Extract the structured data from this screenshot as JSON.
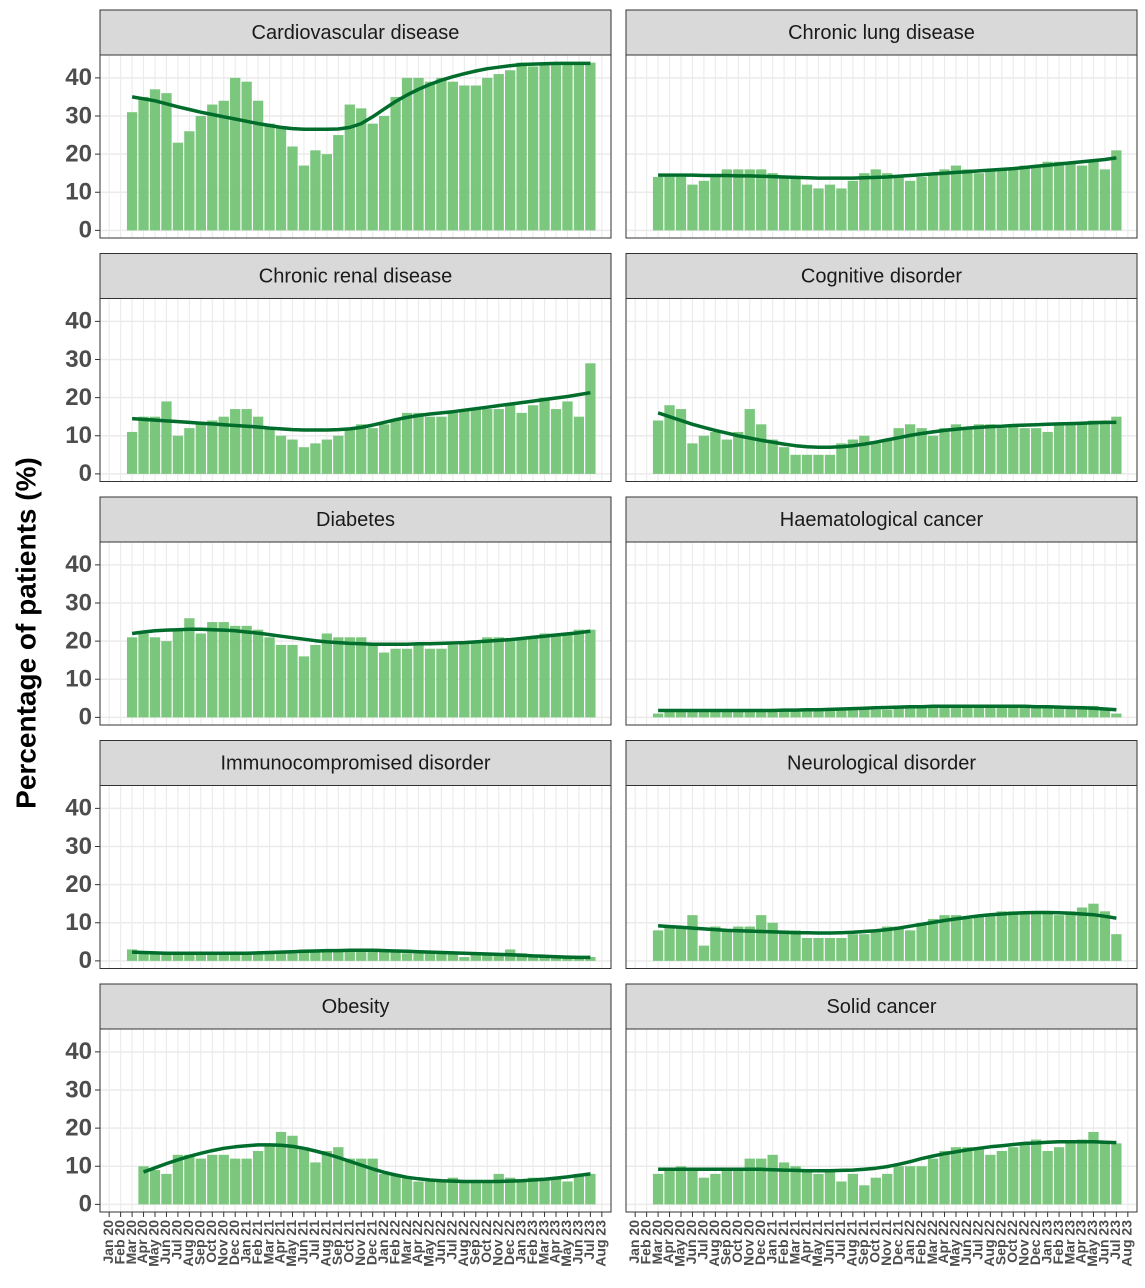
{
  "chart_data": {
    "type": "bar",
    "y_label": "Percentage of patients (%)",
    "categories": [
      "Jan 20",
      "Feb 20",
      "Mar 20",
      "Apr 20",
      "May 20",
      "Jun 20",
      "Jul 20",
      "Aug 20",
      "Sep 20",
      "Oct 20",
      "Nov 20",
      "Dec 20",
      "Jan 21",
      "Feb 21",
      "Mar 21",
      "Apr 21",
      "May 21",
      "Jun 21",
      "Jul 21",
      "Aug 21",
      "Sep 21",
      "Oct 21",
      "Nov 21",
      "Dec 21",
      "Jan 22",
      "Feb 22",
      "Mar 22",
      "Apr 22",
      "May 22",
      "Jun 22",
      "Jul 22",
      "Aug 22",
      "Sep 22",
      "Oct 22",
      "Nov 22",
      "Dec 22",
      "Jan 23",
      "Feb 23",
      "Mar 23",
      "Apr 23",
      "May 23",
      "Jun 23",
      "Jul 23",
      "Aug 23"
    ],
    "ylim": [
      -2,
      46
    ],
    "yticks": [
      0,
      10,
      20,
      30,
      40
    ],
    "grid": true,
    "bar_color": "#74c476",
    "line_color": "#006d2c",
    "panels": [
      {
        "title": "Cardiovascular disease",
        "values": [
          null,
          null,
          31,
          35,
          37,
          36,
          23,
          26,
          30,
          33,
          34,
          40,
          39,
          34,
          28,
          27,
          22,
          17,
          21,
          20,
          25,
          33,
          32,
          28,
          30,
          35,
          40,
          40,
          39,
          40,
          39,
          38,
          38,
          40,
          41,
          42,
          44,
          43,
          44,
          44,
          44,
          44,
          44,
          null
        ],
        "trend": [
          null,
          null,
          35,
          34.5,
          34,
          33.2,
          32.4,
          31.7,
          31,
          30.4,
          29.8,
          29.2,
          28.6,
          28,
          27.5,
          27,
          26.7,
          26.5,
          26.5,
          26.5,
          26.6,
          27,
          28,
          29.8,
          31.8,
          33.8,
          35.5,
          37,
          38.3,
          39.4,
          40.3,
          41.1,
          41.8,
          42.4,
          42.8,
          43.2,
          43.5,
          43.6,
          43.7,
          43.8,
          43.8,
          43.8,
          43.8,
          null
        ]
      },
      {
        "title": "Chronic lung disease",
        "values": [
          null,
          null,
          14,
          14,
          14,
          12,
          13,
          14,
          16,
          16,
          16,
          16,
          15,
          14,
          14,
          12,
          11,
          12,
          11,
          13,
          15,
          16,
          15,
          14,
          13,
          14,
          15,
          16,
          17,
          16,
          15,
          16,
          16,
          16,
          17,
          17,
          18,
          18,
          18,
          17,
          18,
          16,
          21,
          null
        ],
        "trend": [
          null,
          null,
          14.5,
          14.5,
          14.5,
          14.5,
          14.4,
          14.4,
          14.4,
          14.3,
          14.3,
          14.2,
          14.1,
          14,
          13.9,
          13.8,
          13.7,
          13.7,
          13.7,
          13.7,
          13.8,
          13.9,
          14,
          14.2,
          14.4,
          14.6,
          14.8,
          15,
          15.2,
          15.4,
          15.6,
          15.8,
          16,
          16.2,
          16.5,
          16.8,
          17.1,
          17.4,
          17.7,
          18,
          18.3,
          18.6,
          19,
          null
        ]
      },
      {
        "title": "Chronic renal disease",
        "values": [
          null,
          null,
          11,
          15,
          15,
          19,
          10,
          12,
          13,
          14,
          15,
          17,
          17,
          15,
          12,
          10,
          9,
          7,
          8,
          9,
          10,
          12,
          13,
          12,
          13,
          14,
          16,
          16,
          15,
          15,
          16,
          17,
          17,
          17,
          17,
          18,
          16,
          18,
          20,
          17,
          19,
          15,
          29,
          null
        ],
        "trend": [
          null,
          null,
          14.5,
          14.3,
          14.1,
          13.9,
          13.7,
          13.5,
          13.3,
          13.1,
          12.9,
          12.7,
          12.5,
          12.3,
          12,
          11.8,
          11.6,
          11.5,
          11.5,
          11.5,
          11.6,
          11.8,
          12.2,
          12.8,
          13.5,
          14.2,
          14.8,
          15.3,
          15.7,
          16,
          16.3,
          16.7,
          17.1,
          17.5,
          17.9,
          18.3,
          18.7,
          19.1,
          19.5,
          19.9,
          20.3,
          20.8,
          21.3,
          null
        ]
      },
      {
        "title": "Cognitive disorder",
        "values": [
          null,
          null,
          14,
          18,
          17,
          8,
          10,
          11,
          9,
          11,
          17,
          13,
          9,
          7,
          5,
          5,
          5,
          5,
          8,
          9,
          10,
          8,
          9,
          12,
          13,
          12,
          10,
          12,
          13,
          12,
          13,
          13,
          12,
          13,
          12,
          12,
          11,
          13,
          13,
          13,
          14,
          14,
          15,
          null
        ],
        "trend": [
          null,
          null,
          16,
          15,
          14,
          13,
          12.2,
          11.4,
          10.7,
          10,
          9.4,
          8.8,
          8.3,
          7.8,
          7.4,
          7.1,
          7,
          7,
          7.1,
          7.4,
          7.8,
          8.3,
          8.9,
          9.5,
          10.1,
          10.6,
          11,
          11.4,
          11.7,
          12,
          12.2,
          12.4,
          12.5,
          12.7,
          12.8,
          12.9,
          13,
          13.1,
          13.2,
          13.3,
          13.4,
          13.5,
          13.5,
          null
        ]
      },
      {
        "title": "Diabetes",
        "values": [
          null,
          null,
          21,
          22,
          21,
          20,
          23,
          26,
          22,
          25,
          25,
          24,
          24,
          23,
          21,
          19,
          19,
          16,
          19,
          22,
          21,
          21,
          21,
          19,
          17,
          18,
          18,
          19,
          18,
          18,
          19,
          20,
          20,
          21,
          21,
          20,
          21,
          21,
          22,
          22,
          22,
          23,
          23,
          null
        ],
        "trend": [
          null,
          null,
          22,
          22.4,
          22.7,
          22.9,
          23,
          23.1,
          23.1,
          23,
          22.9,
          22.7,
          22.4,
          22.1,
          21.7,
          21.3,
          20.9,
          20.5,
          20.1,
          19.8,
          19.6,
          19.4,
          19.3,
          19.2,
          19.2,
          19.2,
          19.2,
          19.3,
          19.3,
          19.4,
          19.5,
          19.6,
          19.8,
          20,
          20.2,
          20.4,
          20.7,
          21,
          21.3,
          21.6,
          21.9,
          22.2,
          22.6,
          null
        ]
      },
      {
        "title": "Haematological cancer",
        "values": [
          null,
          null,
          1,
          2,
          2,
          2,
          2,
          2,
          2,
          2,
          2,
          2,
          2,
          2,
          2,
          2,
          2,
          2,
          2,
          2,
          2,
          2,
          2,
          3,
          3,
          3,
          3,
          3,
          3,
          3,
          3,
          3,
          3,
          3,
          3,
          3,
          3,
          3,
          3,
          3,
          3,
          2,
          1,
          null
        ],
        "trend": [
          null,
          null,
          1.8,
          1.8,
          1.8,
          1.8,
          1.8,
          1.8,
          1.8,
          1.8,
          1.8,
          1.8,
          1.8,
          1.9,
          1.9,
          2,
          2,
          2.1,
          2.2,
          2.3,
          2.4,
          2.5,
          2.6,
          2.7,
          2.8,
          2.8,
          2.9,
          2.9,
          2.9,
          2.9,
          2.9,
          2.9,
          2.9,
          2.9,
          2.9,
          2.8,
          2.8,
          2.7,
          2.6,
          2.5,
          2.4,
          2.2,
          2,
          null
        ]
      },
      {
        "title": "Immunocompromised disorder",
        "values": [
          null,
          null,
          3,
          2,
          2,
          2,
          2,
          2,
          2,
          2,
          2,
          2,
          2,
          2,
          2,
          2,
          2,
          3,
          3,
          3,
          3,
          3,
          3,
          3,
          3,
          3,
          2,
          2,
          2,
          2,
          2,
          1,
          2,
          2,
          2,
          3,
          2,
          1,
          1,
          1,
          1,
          1,
          1,
          null
        ],
        "trend": [
          null,
          null,
          2.3,
          2.2,
          2.1,
          2,
          2,
          2,
          2,
          2,
          2,
          2,
          2,
          2.1,
          2.2,
          2.3,
          2.4,
          2.5,
          2.6,
          2.7,
          2.7,
          2.8,
          2.8,
          2.8,
          2.7,
          2.6,
          2.5,
          2.4,
          2.3,
          2.2,
          2.1,
          2,
          1.9,
          1.8,
          1.7,
          1.6,
          1.5,
          1.3,
          1.2,
          1.1,
          1,
          0.9,
          0.9,
          null
        ]
      },
      {
        "title": "Neurological disorder",
        "values": [
          null,
          null,
          8,
          9,
          9,
          12,
          4,
          9,
          8,
          9,
          9,
          12,
          10,
          8,
          8,
          6,
          6,
          6,
          6,
          7,
          7,
          8,
          9,
          9,
          8,
          10,
          11,
          12,
          12,
          11,
          12,
          12,
          13,
          13,
          13,
          13,
          13,
          12,
          13,
          14,
          15,
          13,
          7,
          null
        ],
        "trend": [
          null,
          null,
          9.2,
          9,
          8.8,
          8.6,
          8.4,
          8.2,
          8,
          7.9,
          7.8,
          7.7,
          7.6,
          7.5,
          7.4,
          7.4,
          7.3,
          7.3,
          7.4,
          7.5,
          7.7,
          7.9,
          8.2,
          8.6,
          9.1,
          9.6,
          10.1,
          10.6,
          11,
          11.4,
          11.8,
          12.1,
          12.3,
          12.5,
          12.6,
          12.7,
          12.7,
          12.6,
          12.5,
          12.3,
          12.1,
          11.7,
          11.2,
          null
        ]
      },
      {
        "title": "Obesity",
        "values": [
          null,
          null,
          null,
          10,
          9,
          8,
          13,
          13,
          12,
          13,
          13,
          12,
          12,
          14,
          16,
          19,
          18,
          15,
          11,
          14,
          15,
          12,
          12,
          12,
          8,
          8,
          7,
          6,
          6,
          6,
          7,
          6,
          6,
          6,
          8,
          7,
          6,
          7,
          7,
          7,
          6,
          8,
          8,
          null
        ],
        "trend": [
          null,
          null,
          null,
          8.5,
          9.6,
          10.7,
          11.7,
          12.6,
          13.4,
          14.1,
          14.7,
          15.1,
          15.4,
          15.6,
          15.6,
          15.5,
          15.2,
          14.7,
          14,
          13.2,
          12.3,
          11.3,
          10.3,
          9.3,
          8.4,
          7.7,
          7.1,
          6.7,
          6.4,
          6.2,
          6.1,
          6,
          6,
          6,
          6,
          6.1,
          6.2,
          6.4,
          6.6,
          6.9,
          7.2,
          7.6,
          8,
          null
        ]
      },
      {
        "title": "Solid cancer",
        "values": [
          null,
          null,
          8,
          9,
          10,
          9,
          7,
          8,
          9,
          9,
          12,
          12,
          13,
          11,
          10,
          9,
          8,
          9,
          6,
          8,
          5,
          7,
          8,
          10,
          10,
          10,
          12,
          14,
          15,
          15,
          15,
          13,
          14,
          15,
          16,
          17,
          14,
          15,
          16,
          17,
          19,
          16,
          16,
          null
        ],
        "trend": [
          null,
          null,
          9.2,
          9.2,
          9.2,
          9.2,
          9.2,
          9.2,
          9.2,
          9.2,
          9.2,
          9.2,
          9.1,
          9,
          8.9,
          8.8,
          8.8,
          8.8,
          8.9,
          9,
          9.2,
          9.5,
          9.9,
          10.5,
          11.2,
          12,
          12.7,
          13.3,
          13.8,
          14.3,
          14.7,
          15.1,
          15.4,
          15.7,
          16,
          16.1,
          16.3,
          16.4,
          16.4,
          16.4,
          16.4,
          16.3,
          16.2,
          null
        ]
      }
    ]
  }
}
